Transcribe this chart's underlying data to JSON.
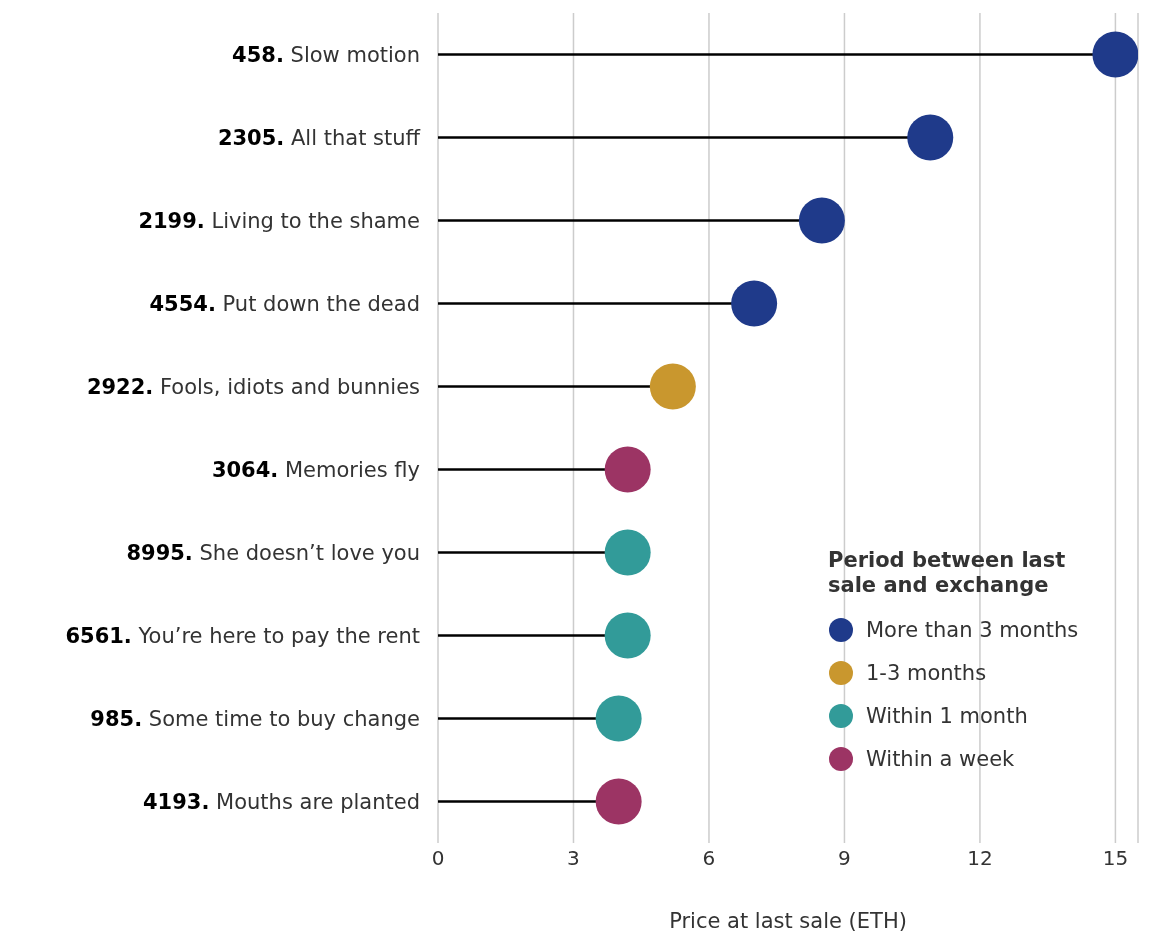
{
  "chart_data": {
    "type": "lollipop",
    "orientation": "horizontal",
    "xlabel": "Price at last sale (ETH)",
    "legend_title": "Period between last sale and exchange",
    "legend": "bottom right",
    "grid": "x",
    "marker": "circle",
    "categories": [
      "458. Slow motion",
      "2305. All that stuff",
      "2199. Living to the shame",
      "4554. Put down the dead",
      "2922. Fools, idiots and bunnies",
      "3064. Memories fly",
      "8995. She doesn’t love you",
      "6561. You’re here to pay the rent",
      "985. Some time to buy change",
      "4193. Mouths are planted"
    ],
    "xlim": [
      0,
      15.5
    ],
    "xticks": [
      0,
      3,
      6,
      9,
      12,
      15
    ],
    "series": [
      {
        "name": "More than 3 months",
        "color": "#1f3a8a",
        "values": [
          15,
          10.9,
          8.5,
          7,
          null,
          null,
          null,
          null,
          null,
          null
        ]
      },
      {
        "name": "1-3 months",
        "color": "#c9972e",
        "values": [
          null,
          null,
          null,
          null,
          5.2,
          null,
          null,
          null,
          null,
          null
        ]
      },
      {
        "name": "Within 1 month",
        "color": "#329b99",
        "values": [
          null,
          null,
          null,
          null,
          null,
          null,
          4.2,
          4.2,
          4,
          null
        ]
      },
      {
        "name": "Within a week",
        "color": "#9c3464",
        "values": [
          null,
          null,
          null,
          null,
          null,
          4.2,
          null,
          null,
          null,
          4
        ]
      }
    ]
  }
}
